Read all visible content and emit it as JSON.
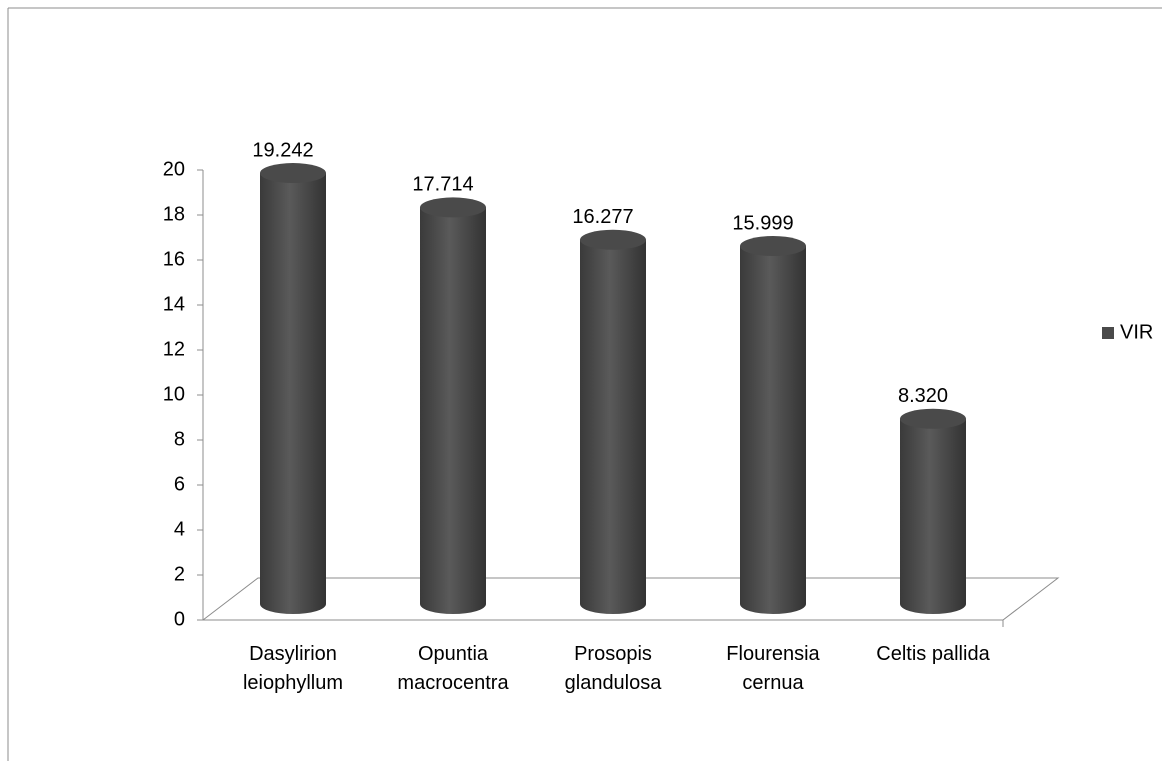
{
  "chart_data": {
    "type": "bar",
    "categories": [
      "Dasylirion leiophyllum",
      "Opuntia macrocentra",
      "Prosopis glandulosa",
      "Flourensia cernua",
      "Celtis pallida"
    ],
    "series": [
      {
        "name": "VIR",
        "color": "#4a4a4a",
        "values": [
          19.242,
          17.714,
          16.277,
          15.999,
          8.32
        ],
        "value_labels": [
          "19.242",
          "17.714",
          "16.277",
          "15.999",
          "8.320"
        ]
      }
    ],
    "ylim": [
      0,
      20
    ],
    "yticks": [
      0,
      2,
      4,
      6,
      8,
      10,
      12,
      14,
      16,
      18,
      20
    ],
    "grid": false,
    "legend": "right"
  }
}
